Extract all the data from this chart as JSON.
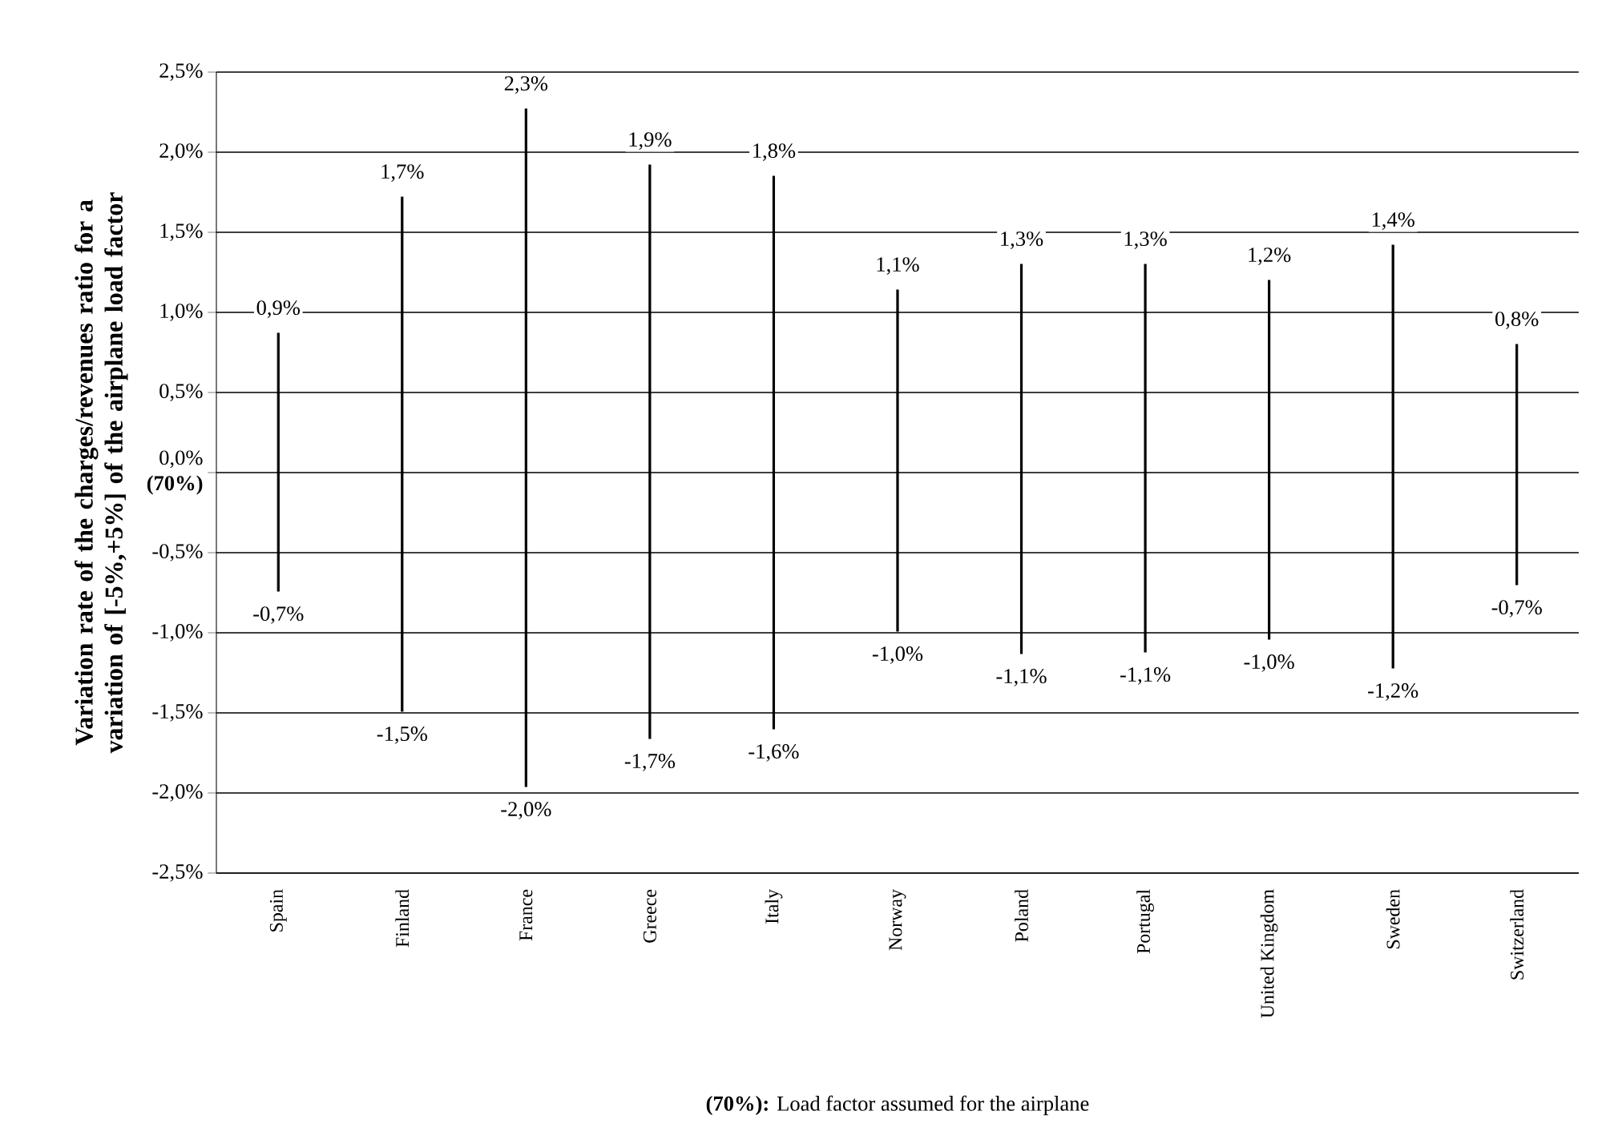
{
  "chart_data": {
    "type": "bar",
    "ylabel": "Variation rate of the charges/revenues ratio for a variation of [-5%,+5%] of the airplane load factor",
    "categories": [
      "Spain",
      "Finland",
      "France",
      "Greece",
      "Italy",
      "Norway",
      "Poland",
      "Portugal",
      "United Kingdom",
      "Sweden",
      "Switzerland"
    ],
    "series": [
      {
        "color": "#000000",
        "values": [
          0.87,
          1.72,
          2.27,
          1.92,
          1.85,
          1.14,
          1.3,
          1.3,
          1.2,
          1.42,
          0.8
        ],
        "value_labels": [
          "0,9%",
          "1,7%",
          "2,3%",
          "1,9%",
          "1,8%",
          "1,1%",
          "1,3%",
          "1,3%",
          "1,2%",
          "1,4%",
          "0,8%"
        ]
      },
      {
        "color": "#000000",
        "values": [
          -0.74,
          -1.49,
          -1.96,
          -1.66,
          -1.6,
          -0.99,
          -1.13,
          -1.12,
          -1.04,
          -1.22,
          -0.7
        ],
        "value_labels": [
          "-0,7%",
          "-1,5%",
          "-2,0%",
          "-1,7%",
          "-1,6%",
          "-1,0%",
          "-1,1%",
          "-1,1%",
          "-1,0%",
          "-1,2%",
          "-0,7%"
        ]
      }
    ],
    "ylim": [
      -2.5,
      2.5
    ],
    "yticks": [
      {
        "value": -2.5,
        "label": "-2,5%"
      },
      {
        "value": -2,
        "label": "-2,0%"
      },
      {
        "value": -1.5,
        "label": "-1,5%"
      },
      {
        "value": -1,
        "label": "-1,0%"
      },
      {
        "value": -0.5,
        "label": "-0,5%"
      },
      {
        "value": 0,
        "label": "0,0% **(70%)**"
      },
      {
        "value": 0.5,
        "label": "0,5%"
      },
      {
        "value": 1,
        "label": "1,0%"
      },
      {
        "value": 1.5,
        "label": "1,5%"
      },
      {
        "value": 2,
        "label": "2,0%"
      },
      {
        "value": 2.5,
        "label": "2,5%"
      }
    ],
    "grid": "y",
    "annotations": [
      "**(70%):** Load factor assumed for the airplane"
    ]
  }
}
